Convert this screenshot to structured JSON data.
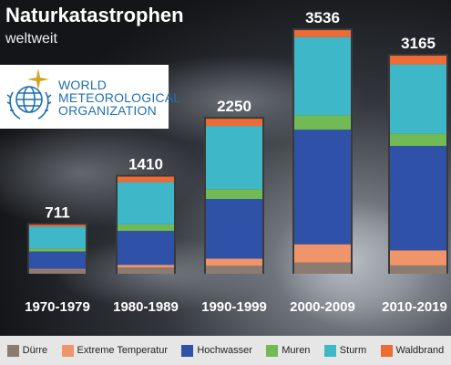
{
  "header": {
    "title": "Naturkatastrophen",
    "subtitle": "weltweit"
  },
  "logo": {
    "line1": "WORLD",
    "line2": "METEOROLOGICAL",
    "line3": "ORGANIZATION"
  },
  "colors": {
    "Dürre": "#8c7b70",
    "Extreme Temperatur": "#f0956a",
    "Hochwasser": "#2f52a8",
    "Muren": "#72bb54",
    "Sturm": "#3eb7c9",
    "Waldbrand": "#ef6b35"
  },
  "chart_data": {
    "type": "bar",
    "stacked": true,
    "categories": [
      "1970-1979",
      "1980-1989",
      "1990-1999",
      "2000-2009",
      "2010-2019"
    ],
    "totals": [
      711,
      1410,
      2250,
      3536,
      3165
    ],
    "series": [
      {
        "name": "Dürre",
        "values": [
          61,
          91,
          116,
          163,
          121
        ]
      },
      {
        "name": "Extreme Temperatur",
        "values": [
          10,
          39,
          103,
          265,
          219
        ]
      },
      {
        "name": "Hochwasser",
        "values": [
          253,
          493,
          867,
          1664,
          1515
        ]
      },
      {
        "name": "Muren",
        "values": [
          45,
          94,
          142,
          207,
          180
        ]
      },
      {
        "name": "Sturm",
        "values": [
          316,
          613,
          917,
          1136,
          1004
        ]
      },
      {
        "name": "Waldbrand",
        "values": [
          26,
          80,
          105,
          101,
          126
        ]
      }
    ],
    "legend_position": "bottom",
    "grid": false
  }
}
